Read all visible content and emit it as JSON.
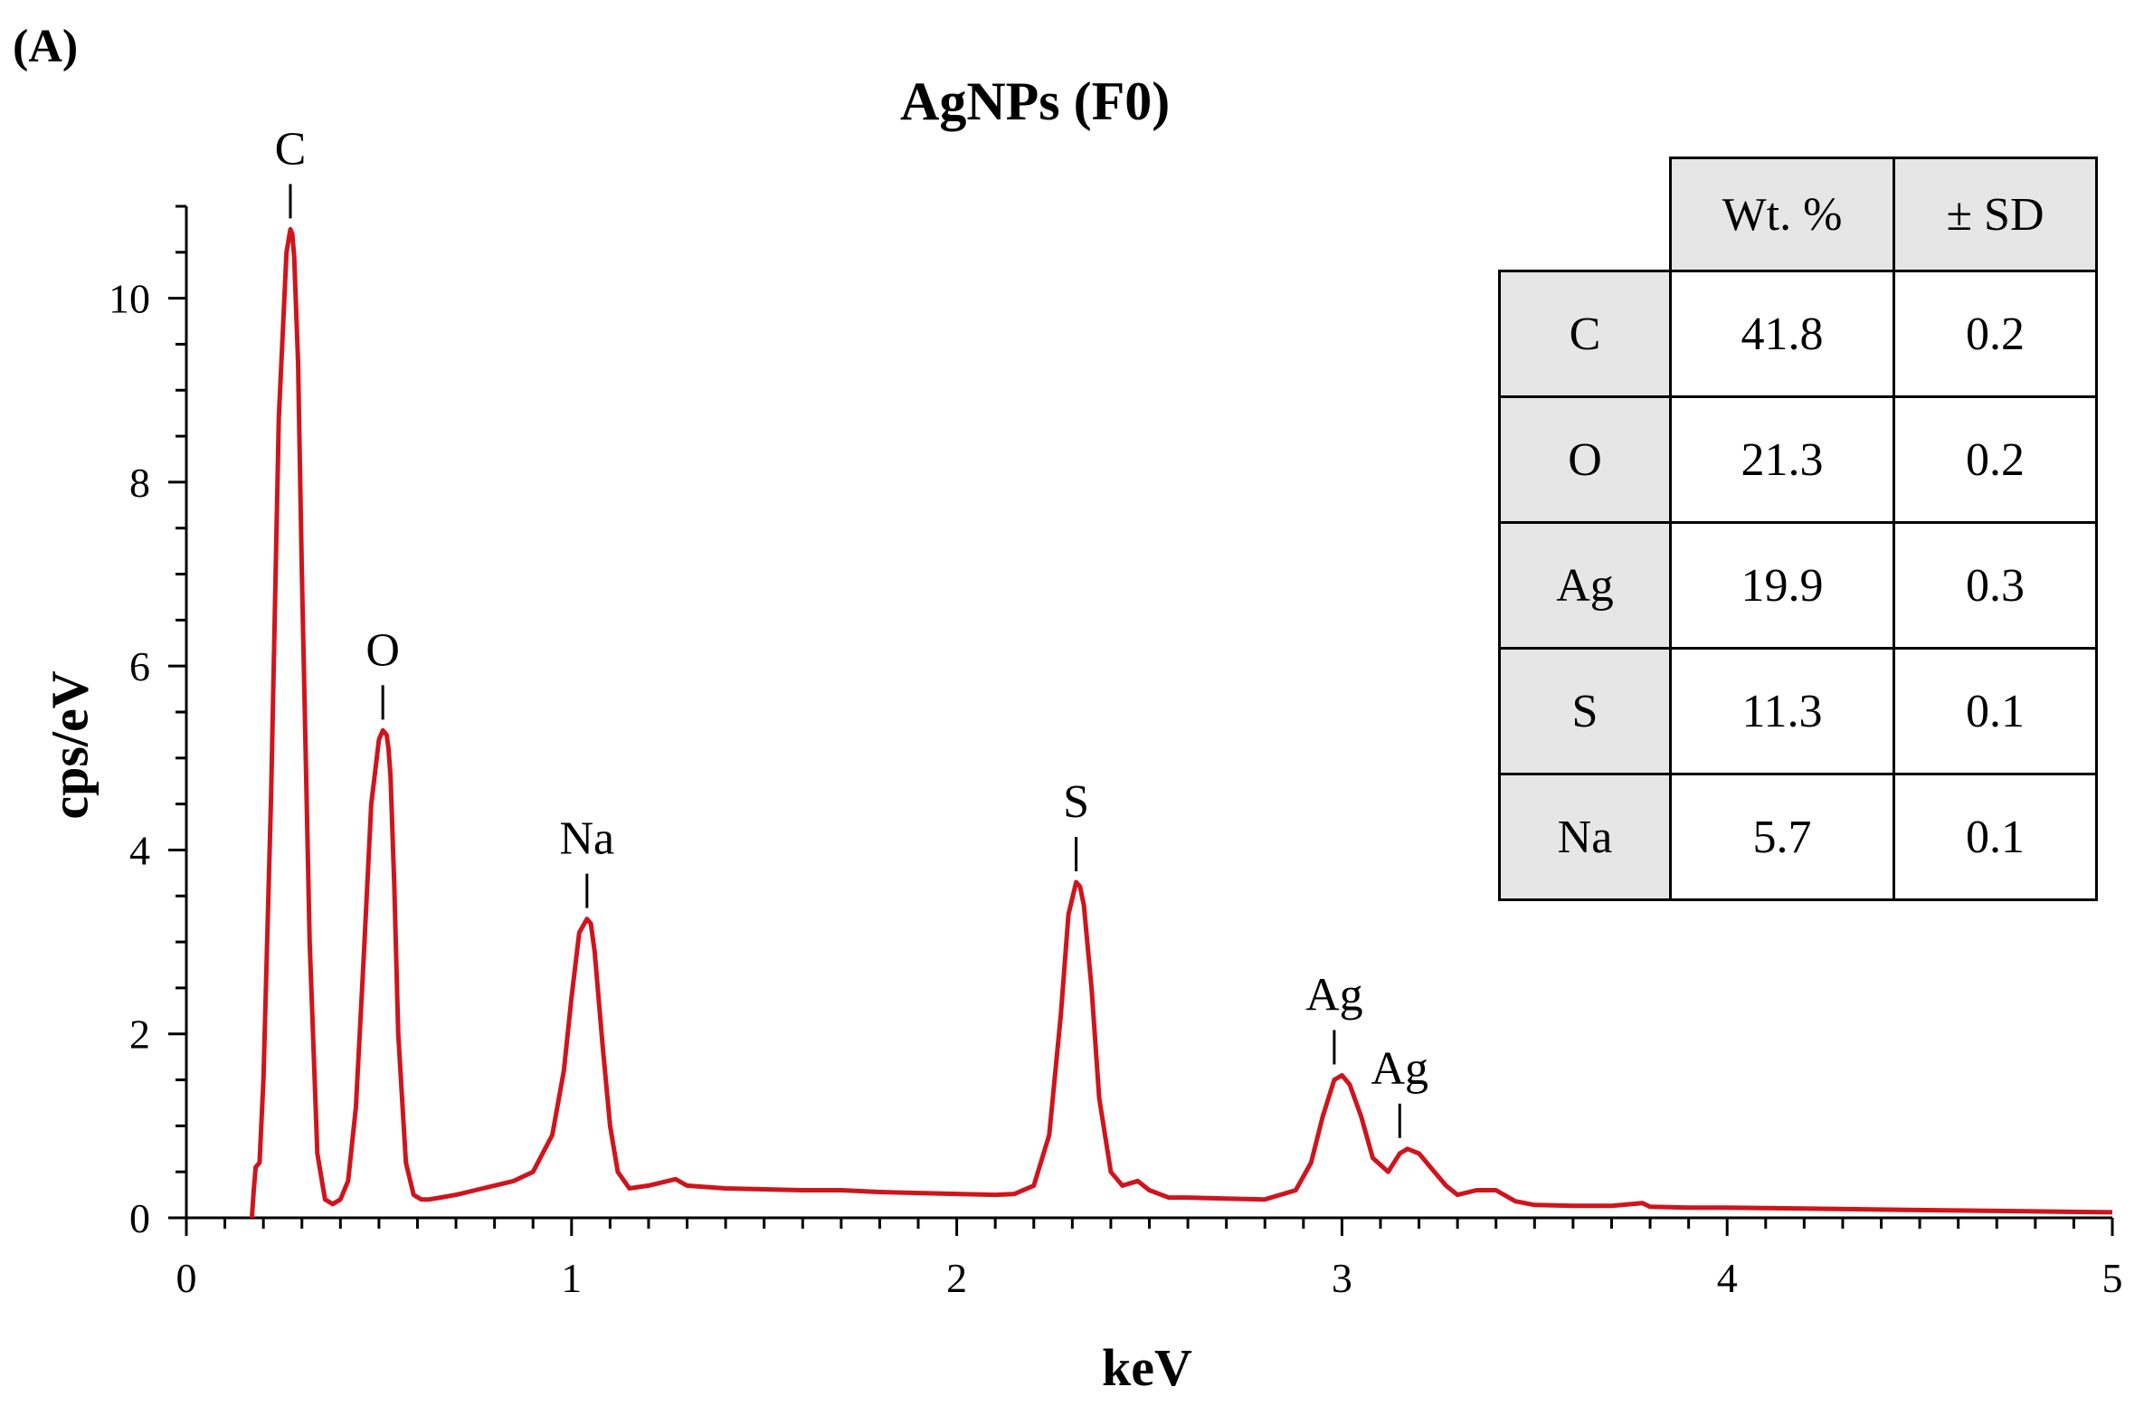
{
  "panel_label": "(A)",
  "table": {
    "headers": [
      "",
      "Wt. %",
      "± SD"
    ],
    "rows": [
      {
        "element": "C",
        "wt": "41.8",
        "sd": "0.2"
      },
      {
        "element": "O",
        "wt": "21.3",
        "sd": "0.2"
      },
      {
        "element": "Ag",
        "wt": "19.9",
        "sd": "0.3"
      },
      {
        "element": "S",
        "wt": "11.3",
        "sd": "0.1"
      },
      {
        "element": "Na",
        "wt": "5.7",
        "sd": "0.1"
      }
    ]
  },
  "chart_data": {
    "type": "line",
    "title": "AgNPs (F0)",
    "xlabel": "keV",
    "ylabel": "cps/eV",
    "xlim": [
      0,
      5
    ],
    "ylim": [
      0,
      11
    ],
    "x_ticks": [
      0,
      1,
      2,
      3,
      4,
      5
    ],
    "y_ticks": [
      0,
      2,
      4,
      6,
      8,
      10
    ],
    "grid": false,
    "series_color": "#d0141c",
    "series": [
      {
        "x": [
          0.17,
          0.175,
          0.18,
          0.19,
          0.2,
          0.22,
          0.24,
          0.26,
          0.27,
          0.275,
          0.28,
          0.29,
          0.3,
          0.32,
          0.34,
          0.36,
          0.38,
          0.4,
          0.42,
          0.44,
          0.46,
          0.48,
          0.5,
          0.51,
          0.52,
          0.525,
          0.53,
          0.54,
          0.55,
          0.57,
          0.59,
          0.61,
          0.63,
          0.66,
          0.7,
          0.75,
          0.8,
          0.85,
          0.9,
          0.95,
          0.98,
          1.0,
          1.02,
          1.04,
          1.05,
          1.06,
          1.08,
          1.1,
          1.12,
          1.15,
          1.2,
          1.25,
          1.27,
          1.3,
          1.4,
          1.5,
          1.6,
          1.7,
          1.8,
          1.9,
          2.0,
          2.1,
          2.15,
          2.2,
          2.24,
          2.27,
          2.29,
          2.31,
          2.32,
          2.33,
          2.35,
          2.37,
          2.4,
          2.43,
          2.47,
          2.5,
          2.55,
          2.6,
          2.7,
          2.8,
          2.88,
          2.92,
          2.95,
          2.98,
          3.0,
          3.02,
          3.05,
          3.08,
          3.12,
          3.15,
          3.17,
          3.2,
          3.23,
          3.27,
          3.3,
          3.35,
          3.4,
          3.45,
          3.5,
          3.6,
          3.7,
          3.78,
          3.8,
          3.9,
          4.0,
          4.2,
          4.4,
          4.6,
          4.8,
          5.0
        ],
        "y": [
          0.0,
          0.3,
          0.55,
          0.6,
          1.5,
          4.6,
          8.7,
          10.5,
          10.75,
          10.7,
          10.45,
          9.3,
          7.0,
          3.0,
          0.7,
          0.2,
          0.15,
          0.2,
          0.4,
          1.2,
          2.8,
          4.5,
          5.2,
          5.3,
          5.25,
          5.1,
          4.8,
          3.6,
          2.0,
          0.6,
          0.25,
          0.2,
          0.2,
          0.22,
          0.25,
          0.3,
          0.35,
          0.4,
          0.5,
          0.9,
          1.6,
          2.4,
          3.1,
          3.25,
          3.2,
          2.9,
          1.9,
          1.0,
          0.5,
          0.32,
          0.35,
          0.4,
          0.42,
          0.35,
          0.32,
          0.31,
          0.3,
          0.3,
          0.28,
          0.27,
          0.26,
          0.25,
          0.26,
          0.35,
          0.9,
          2.2,
          3.3,
          3.65,
          3.6,
          3.4,
          2.5,
          1.3,
          0.5,
          0.35,
          0.4,
          0.3,
          0.22,
          0.22,
          0.21,
          0.2,
          0.3,
          0.6,
          1.1,
          1.5,
          1.55,
          1.45,
          1.1,
          0.65,
          0.5,
          0.7,
          0.75,
          0.7,
          0.55,
          0.35,
          0.25,
          0.3,
          0.3,
          0.18,
          0.14,
          0.13,
          0.13,
          0.16,
          0.12,
          0.11,
          0.11,
          0.1,
          0.09,
          0.08,
          0.07,
          0.06
        ]
      }
    ],
    "annotations": [
      {
        "text": "C",
        "x": 0.27,
        "y": 10.75
      },
      {
        "text": "O",
        "x": 0.51,
        "y": 5.3
      },
      {
        "text": "Na",
        "x": 1.04,
        "y": 3.25
      },
      {
        "text": "S",
        "x": 2.31,
        "y": 3.65
      },
      {
        "text": "Ag",
        "x": 2.98,
        "y": 1.55
      },
      {
        "text": "Ag",
        "x": 3.15,
        "y": 0.75
      }
    ]
  }
}
